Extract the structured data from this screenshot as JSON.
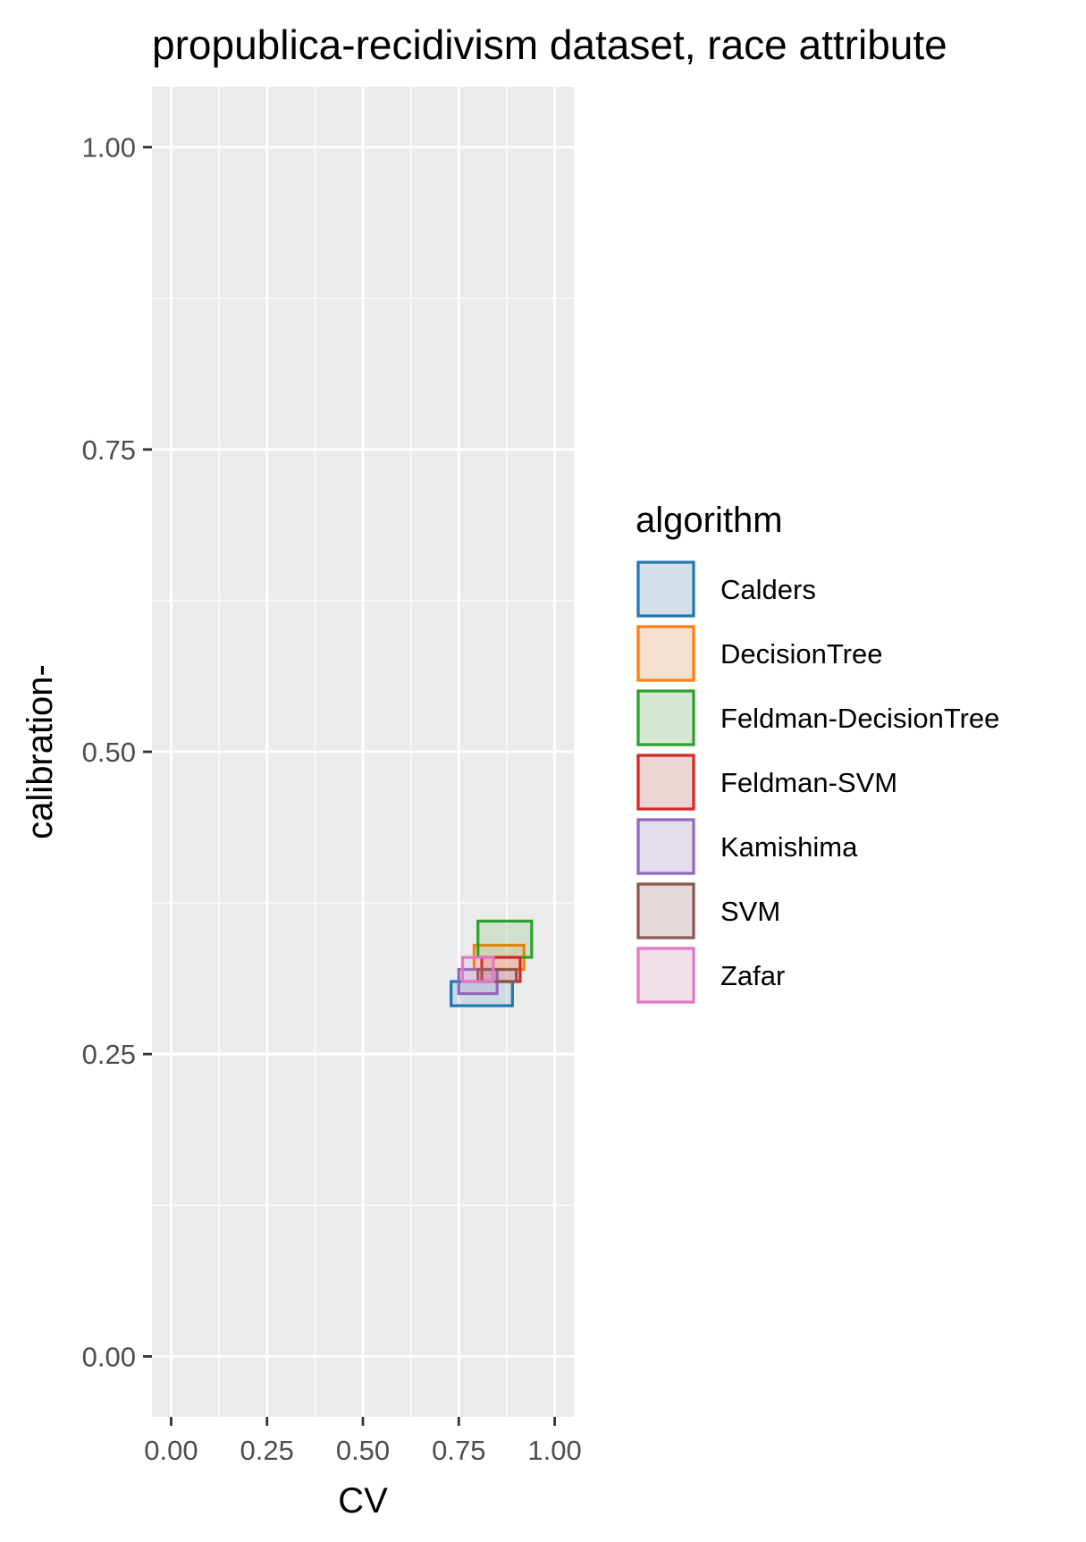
{
  "chart_data": {
    "type": "scatter",
    "title": "propublica-recidivism dataset, race attribute",
    "xlabel": "CV",
    "ylabel": "calibration-",
    "xlim": [
      -0.05,
      1.05
    ],
    "ylim": [
      -0.05,
      1.05
    ],
    "x_ticks": [
      "0.00",
      "0.25",
      "0.50",
      "0.75",
      "1.00"
    ],
    "y_ticks": [
      "0.00",
      "0.25",
      "0.50",
      "0.75",
      "1.00"
    ],
    "grid": true,
    "legend": {
      "title": "algorithm",
      "position": "right"
    },
    "series": [
      {
        "name": "Calders",
        "color": "#1f77b4",
        "x": [
          0.73,
          0.89
        ],
        "y": [
          0.29,
          0.31
        ]
      },
      {
        "name": "DecisionTree",
        "color": "#ff7f0e",
        "x": [
          0.79,
          0.92
        ],
        "y": [
          0.32,
          0.34
        ]
      },
      {
        "name": "Feldman-DecisionTree",
        "color": "#2ca02c",
        "x": [
          0.8,
          0.94
        ],
        "y": [
          0.33,
          0.36
        ]
      },
      {
        "name": "Feldman-SVM",
        "color": "#d62728",
        "x": [
          0.81,
          0.91
        ],
        "y": [
          0.31,
          0.33
        ]
      },
      {
        "name": "Kamishima",
        "color": "#9467bd",
        "x": [
          0.75,
          0.85
        ],
        "y": [
          0.3,
          0.32
        ]
      },
      {
        "name": "SVM",
        "color": "#8c564b",
        "x": [
          0.8,
          0.9
        ],
        "y": [
          0.31,
          0.32
        ]
      },
      {
        "name": "Zafar",
        "color": "#e377c2",
        "x": [
          0.76,
          0.84
        ],
        "y": [
          0.31,
          0.33
        ]
      }
    ]
  }
}
